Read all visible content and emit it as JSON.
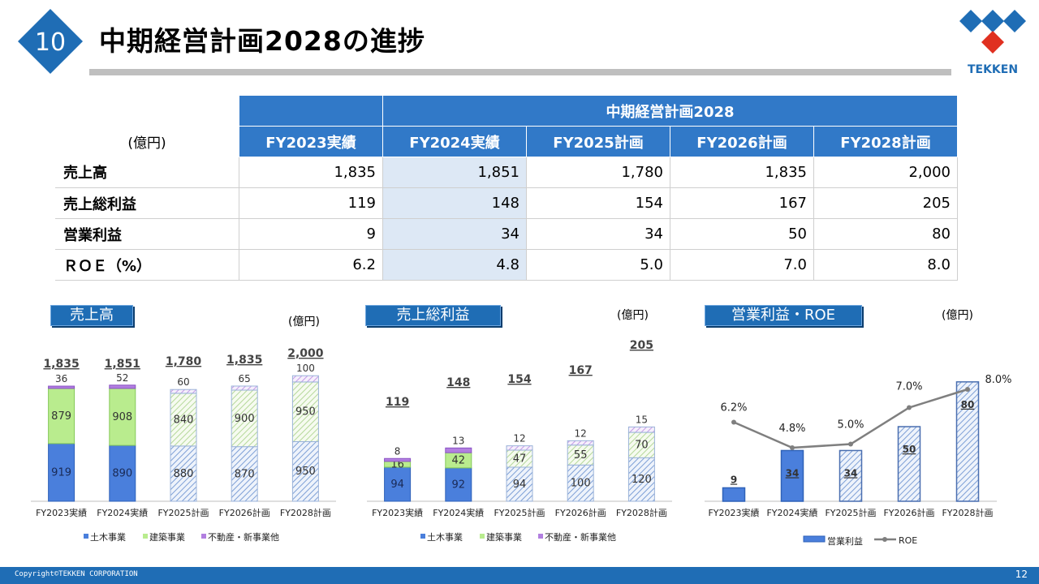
{
  "header": {
    "page_number_badge": "10",
    "title": "中期経営計画2028の進捗",
    "logo_text": "TEKKEN"
  },
  "table": {
    "unit": "(億円)",
    "group_header": "中期経営計画2028",
    "columns": [
      "FY2023実績",
      "FY2024実績",
      "FY2025計画",
      "FY2026計画",
      "FY2028計画"
    ],
    "rows": [
      {
        "label": "売上高",
        "values": [
          "1,835",
          "1,851",
          "1,780",
          "1,835",
          "2,000"
        ]
      },
      {
        "label": "売上総利益",
        "values": [
          "119",
          "148",
          "154",
          "167",
          "205"
        ]
      },
      {
        "label": "営業利益",
        "values": [
          "9",
          "34",
          "34",
          "50",
          "80"
        ]
      },
      {
        "label": "ＲＯＥ（%）",
        "values": [
          "6.2",
          "4.8",
          "5.0",
          "7.0",
          "8.0"
        ]
      }
    ]
  },
  "chart_data": [
    {
      "type": "bar",
      "title": "売上高",
      "unit": "(億円)",
      "categories": [
        "FY2023実績",
        "FY2024実績",
        "FY2025計画",
        "FY2026計画",
        "FY2028計画"
      ],
      "series": [
        {
          "name": "土木事業",
          "values": [
            919,
            890,
            880,
            870,
            950
          ]
        },
        {
          "name": "建築事業",
          "values": [
            879,
            908,
            840,
            900,
            950
          ]
        },
        {
          "name": "不動産・新事業他",
          "values": [
            36,
            52,
            60,
            65,
            100
          ]
        }
      ],
      "totals": [
        "1,835",
        "1,851",
        "1,780",
        "1,835",
        "2,000"
      ],
      "stacked": true,
      "colors": {
        "civil": "#4a7fdc",
        "building": "#b9ec8e",
        "realestate": "#b27fe0"
      }
    },
    {
      "type": "bar",
      "title": "売上総利益",
      "unit": "(億円)",
      "categories": [
        "FY2023実績",
        "FY2024実績",
        "FY2025計画",
        "FY2026計画",
        "FY2028計画"
      ],
      "series": [
        {
          "name": "土木事業",
          "values": [
            94,
            92,
            94,
            100,
            120
          ]
        },
        {
          "name": "建築事業",
          "values": [
            16,
            42,
            47,
            55,
            70
          ]
        },
        {
          "name": "不動産・新事業他",
          "values": [
            8,
            13,
            12,
            12,
            15
          ]
        }
      ],
      "totals": [
        "119",
        "148",
        "154",
        "167",
        "205"
      ],
      "stacked": true
    },
    {
      "type": "bar",
      "title": "営業利益・ROE",
      "unit": "(億円)",
      "categories": [
        "FY2023実績",
        "FY2024実績",
        "FY2025計画",
        "FY2026計画",
        "FY2028計画"
      ],
      "series": [
        {
          "name": "営業利益",
          "type": "bar",
          "values": [
            9,
            34,
            34,
            50,
            80
          ]
        },
        {
          "name": "ROE",
          "type": "line",
          "values": [
            6.2,
            4.8,
            5.0,
            7.0,
            8.0
          ],
          "labels": [
            "6.2%",
            "4.8%",
            "5.0%",
            "7.0%",
            "8.0%"
          ]
        }
      ]
    }
  ],
  "footer": {
    "copyright": "Copyright©TEKKEN CORPORATION",
    "page": "12"
  }
}
